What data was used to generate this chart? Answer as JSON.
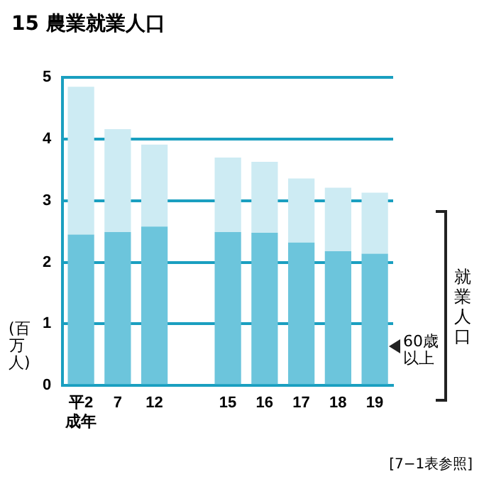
{
  "chart_data": {
    "type": "bar",
    "title": "15 農業就業人口",
    "ylabel": "(百万人)",
    "stacked": true,
    "categories": [
      "平2\n成年",
      "7",
      "12",
      null,
      "15",
      "16",
      "17",
      "18",
      "19"
    ],
    "series": [
      {
        "name": "60歳以上",
        "color": "#6cc5dc",
        "values": [
          2.45,
          2.49,
          2.58,
          null,
          2.49,
          2.48,
          2.32,
          2.18,
          2.14
        ]
      },
      {
        "color": "#cdebf3",
        "values": [
          2.4,
          1.67,
          1.33,
          null,
          1.21,
          1.15,
          1.04,
          1.03,
          0.99
        ]
      }
    ],
    "ylim": [
      0,
      5
    ],
    "yticks": [
      0,
      1,
      2,
      3,
      4,
      5
    ],
    "grid": "y",
    "legend": false,
    "annotations": [
      "就業人口",
      "[7−1表参照]"
    ]
  }
}
